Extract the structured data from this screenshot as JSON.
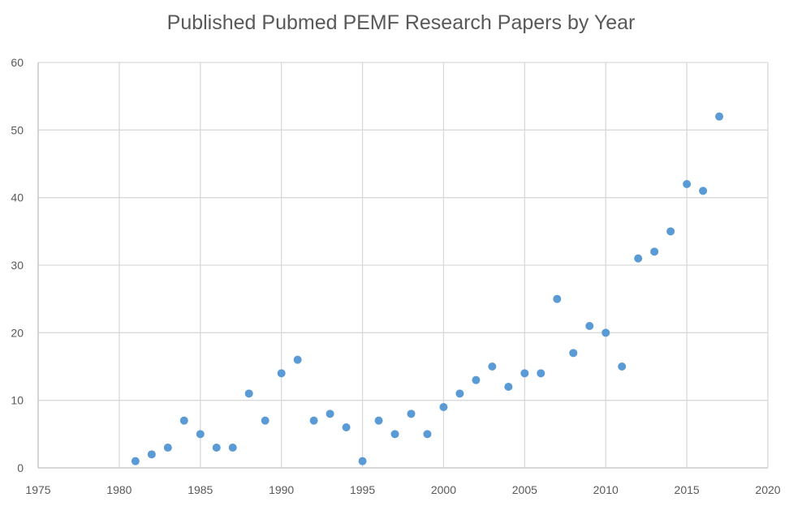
{
  "chart_data": {
    "type": "scatter",
    "title": "Published Pubmed PEMF Research Papers by Year",
    "xlabel": "",
    "ylabel": "",
    "xlim": [
      1975,
      2020
    ],
    "ylim": [
      0,
      60
    ],
    "xticks": [
      1975,
      1980,
      1985,
      1990,
      1995,
      2000,
      2005,
      2010,
      2015,
      2020
    ],
    "yticks": [
      0,
      10,
      20,
      30,
      40,
      50,
      60
    ],
    "grid": true,
    "color": "#5b9bd5",
    "series": [
      {
        "name": "Papers",
        "points": [
          [
            1981,
            1
          ],
          [
            1982,
            2
          ],
          [
            1983,
            3
          ],
          [
            1984,
            7
          ],
          [
            1985,
            5
          ],
          [
            1986,
            3
          ],
          [
            1987,
            3
          ],
          [
            1988,
            11
          ],
          [
            1989,
            7
          ],
          [
            1990,
            14
          ],
          [
            1991,
            16
          ],
          [
            1992,
            7
          ],
          [
            1993,
            8
          ],
          [
            1994,
            6
          ],
          [
            1995,
            1
          ],
          [
            1996,
            7
          ],
          [
            1997,
            5
          ],
          [
            1998,
            8
          ],
          [
            1999,
            5
          ],
          [
            2000,
            9
          ],
          [
            2001,
            11
          ],
          [
            2002,
            13
          ],
          [
            2003,
            15
          ],
          [
            2004,
            12
          ],
          [
            2005,
            14
          ],
          [
            2006,
            14
          ],
          [
            2007,
            25
          ],
          [
            2008,
            17
          ],
          [
            2009,
            21
          ],
          [
            2010,
            20
          ],
          [
            2011,
            15
          ],
          [
            2012,
            31
          ],
          [
            2013,
            32
          ],
          [
            2014,
            35
          ],
          [
            2015,
            42
          ],
          [
            2016,
            41
          ],
          [
            2017,
            52
          ]
        ]
      }
    ]
  }
}
